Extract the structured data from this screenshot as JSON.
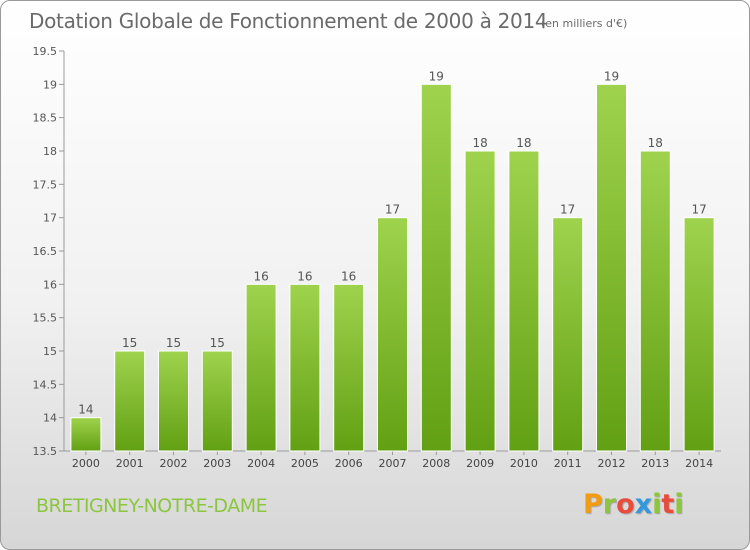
{
  "header": {
    "title": "Dotation Globale de Fonctionnement de 2000 à 2014",
    "subtitle": "(en milliers d'€)"
  },
  "footer": {
    "commune": "BRETIGNEY-NOTRE-DAME",
    "brand": "Proxiti"
  },
  "colors": {
    "bar_top": "#9fd34e",
    "bar_bottom": "#62a013",
    "commune_text": "#8cc63e",
    "brand_letters": [
      "#f39c12",
      "#8cc63e",
      "#e74c3c",
      "#3498db",
      "#8cc63e",
      "#e74c3c",
      "#8cc63e"
    ]
  },
  "chart_data": {
    "type": "bar",
    "title": "Dotation Globale de Fonctionnement de 2000 à 2014",
    "subtitle": "(en milliers d'€)",
    "categories": [
      "2000",
      "2001",
      "2002",
      "2003",
      "2004",
      "2005",
      "2006",
      "2007",
      "2008",
      "2009",
      "2010",
      "2011",
      "2012",
      "2013",
      "2014"
    ],
    "values": [
      14,
      15,
      15,
      15,
      16,
      16,
      16,
      17,
      19,
      18,
      18,
      17,
      19,
      18,
      17
    ],
    "data_labels": [
      "14",
      "15",
      "15",
      "15",
      "16",
      "16",
      "16",
      "17",
      "19",
      "18",
      "18",
      "17",
      "19",
      "18",
      "17"
    ],
    "ylim": [
      13.5,
      19.5
    ],
    "yticks": [
      "13.5",
      "14",
      "14.5",
      "15",
      "15.5",
      "16",
      "16.5",
      "17",
      "17.5",
      "18",
      "18.5",
      "19",
      "19.5"
    ],
    "xlabel": "",
    "ylabel": "",
    "grid": false,
    "legend": "none"
  }
}
